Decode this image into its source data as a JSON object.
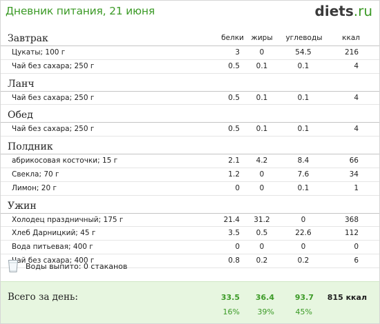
{
  "header": {
    "title": "Дневник питания, 21 июня",
    "logo_domain": "diets",
    "logo_tld": ".ru"
  },
  "columns": {
    "protein": "белки",
    "fat": "жиры",
    "carbs": "углеводы",
    "kcal": "ккал"
  },
  "meals": [
    {
      "title": "Завтрак",
      "items": [
        {
          "name": "Цукаты; 100 г",
          "protein": "3",
          "fat": "0",
          "carbs": "54.5",
          "kcal": "216"
        },
        {
          "name": "Чай без сахара; 250 г",
          "protein": "0.5",
          "fat": "0.1",
          "carbs": "0.1",
          "kcal": "4"
        }
      ]
    },
    {
      "title": "Ланч",
      "items": [
        {
          "name": "Чай без сахара; 250 г",
          "protein": "0.5",
          "fat": "0.1",
          "carbs": "0.1",
          "kcal": "4"
        }
      ]
    },
    {
      "title": "Обед",
      "items": [
        {
          "name": "Чай без сахара; 250 г",
          "protein": "0.5",
          "fat": "0.1",
          "carbs": "0.1",
          "kcal": "4"
        }
      ]
    },
    {
      "title": "Полдник",
      "items": [
        {
          "name": "абрикосовая косточки; 15 г",
          "protein": "2.1",
          "fat": "4.2",
          "carbs": "8.4",
          "kcal": "66"
        },
        {
          "name": "Свекла; 70 г",
          "protein": "1.2",
          "fat": "0",
          "carbs": "7.6",
          "kcal": "34"
        },
        {
          "name": "Лимон; 20 г",
          "protein": "0",
          "fat": "0",
          "carbs": "0.1",
          "kcal": "1"
        }
      ]
    },
    {
      "title": "Ужин",
      "items": [
        {
          "name": "Холодец праздничный; 175 г",
          "protein": "21.4",
          "fat": "31.2",
          "carbs": "0",
          "kcal": "368"
        },
        {
          "name": "Хлеб Дарницкий; 45 г",
          "protein": "3.5",
          "fat": "0.5",
          "carbs": "22.6",
          "kcal": "112"
        },
        {
          "name": "Вода питьевая; 400 г",
          "protein": "0",
          "fat": "0",
          "carbs": "0",
          "kcal": "0"
        },
        {
          "name": "Чай без сахара; 400 г",
          "protein": "0.8",
          "fat": "0.2",
          "carbs": "0.2",
          "kcal": "6"
        }
      ]
    }
  ],
  "water": {
    "icon": "glass-icon",
    "text": "Воды выпито: 0 стаканов"
  },
  "totals": {
    "label": "Всего за день:",
    "protein": "33.5",
    "fat": "36.4",
    "carbs": "93.7",
    "kcal": "815 ккал",
    "protein_pct": "16%",
    "fat_pct": "39%",
    "carbs_pct": "45%"
  },
  "colors": {
    "accent_green": "#3b9a26",
    "totals_background": "#e7f6e0"
  }
}
